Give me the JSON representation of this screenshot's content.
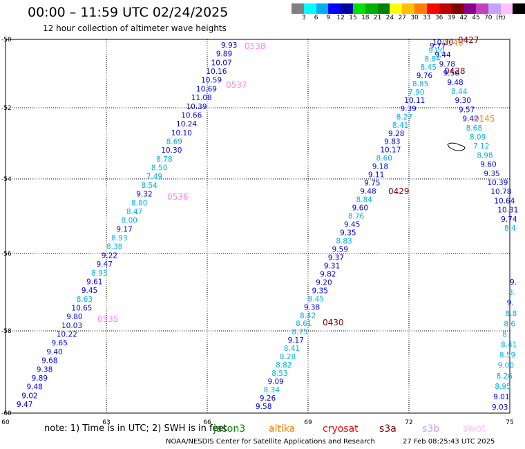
{
  "header": {
    "title": "00:00 – 11:59 UTC 02/24/2025",
    "subtitle": "12 hour collection of altimeter wave heights"
  },
  "colorbar": {
    "colors": [
      "#808080",
      "#00ffff",
      "#00b0f0",
      "#0000ff",
      "#0000a0",
      "#00e000",
      "#00b000",
      "#008000",
      "#ffff00",
      "#ffc000",
      "#ff8000",
      "#ff0000",
      "#c00000",
      "#800000",
      "#8b008b",
      "#c040c0",
      "#c8a0ff",
      "#ffc0ff",
      "#000000"
    ],
    "labels": [
      "3",
      "6",
      "9",
      "12",
      "15",
      "18",
      "21",
      "24",
      "27",
      "30",
      "33",
      "36",
      "39",
      "42",
      "45",
      "70"
    ],
    "unit": "(ft)"
  },
  "map": {
    "lon_ticks": [
      "60",
      "63",
      "66",
      "69",
      "72",
      "75"
    ],
    "lat_ticks": [
      "-50",
      "-52",
      "-54",
      "-56",
      "-58",
      "-60"
    ]
  },
  "passes": [
    {
      "label": "0538",
      "color": "#ff80ff",
      "pos": [
        0,
        0
      ]
    },
    {
      "label": "0537",
      "color": "#ff80ff",
      "pos": [
        0,
        0
      ]
    },
    {
      "label": "0536",
      "color": "#ff80ff",
      "pos": [
        0,
        0
      ]
    },
    {
      "label": "0535",
      "color": "#ff80ff",
      "pos": [
        0,
        0
      ]
    },
    {
      "label": "0427",
      "color": "#800000",
      "pos": [
        0,
        0
      ]
    },
    {
      "label": "0428",
      "color": "#800000",
      "pos": [
        0,
        0
      ]
    },
    {
      "label": "0429",
      "color": "#800000",
      "pos": [
        0,
        0
      ]
    },
    {
      "label": "0430",
      "color": "#800000",
      "pos": [
        0,
        0
      ]
    },
    {
      "label": "0145",
      "color": "#ff8000",
      "pos": [
        0,
        0
      ]
    },
    {
      "label": "0146",
      "color": "#ff8000",
      "pos": [
        0,
        0
      ]
    }
  ],
  "tracks": [
    {
      "name": "track-0535-0538",
      "points": [
        {
          "v": "9.93",
          "c": "#0000ff"
        },
        {
          "v": "9.89",
          "c": "#0000ff"
        },
        {
          "v": "10.07",
          "c": "#0000ff"
        },
        {
          "v": "10.16",
          "c": "#0000ff"
        },
        {
          "v": "10.59",
          "c": "#0000ff"
        },
        {
          "v": "10.69",
          "c": "#0000ff"
        },
        {
          "v": "11.08",
          "c": "#0000ff"
        },
        {
          "v": "10.39",
          "c": "#0000ff"
        },
        {
          "v": "10.66",
          "c": "#0000ff"
        },
        {
          "v": "10.24",
          "c": "#0000ff"
        },
        {
          "v": "10.10",
          "c": "#0000ff"
        },
        {
          "v": "8.69",
          "c": "#00b0f0"
        },
        {
          "v": "10.30",
          "c": "#0000ff"
        },
        {
          "v": "8.78",
          "c": "#00b0f0"
        },
        {
          "v": "8.50",
          "c": "#00b0f0"
        },
        {
          "v": "7.49",
          "c": "#00b0f0"
        },
        {
          "v": "8.54",
          "c": "#00b0f0"
        },
        {
          "v": "9.32",
          "c": "#0000ff"
        },
        {
          "v": "8.80",
          "c": "#00b0f0"
        },
        {
          "v": "8.47",
          "c": "#00b0f0"
        },
        {
          "v": "8.00",
          "c": "#00b0f0"
        },
        {
          "v": "9.17",
          "c": "#0000ff"
        },
        {
          "v": "8.93",
          "c": "#00b0f0"
        },
        {
          "v": "8.38",
          "c": "#00b0f0"
        },
        {
          "v": "9.22",
          "c": "#0000ff"
        },
        {
          "v": "9.47",
          "c": "#0000ff"
        },
        {
          "v": "8.93",
          "c": "#00b0f0"
        },
        {
          "v": "9.61",
          "c": "#0000ff"
        },
        {
          "v": "9.45",
          "c": "#0000ff"
        },
        {
          "v": "8.63",
          "c": "#00b0f0"
        },
        {
          "v": "10.65",
          "c": "#0000ff"
        },
        {
          "v": "9.80",
          "c": "#0000ff"
        },
        {
          "v": "10.03",
          "c": "#0000ff"
        },
        {
          "v": "10.22",
          "c": "#0000ff"
        },
        {
          "v": "9.65",
          "c": "#0000ff"
        },
        {
          "v": "9.40",
          "c": "#0000ff"
        },
        {
          "v": "9.68",
          "c": "#0000ff"
        },
        {
          "v": "9.38",
          "c": "#0000ff"
        },
        {
          "v": "9.89",
          "c": "#0000ff"
        },
        {
          "v": "9.48",
          "c": "#0000ff"
        },
        {
          "v": "9.02",
          "c": "#0000ff"
        },
        {
          "v": "9.47",
          "c": "#0000ff"
        }
      ]
    },
    {
      "name": "track-0427-0430",
      "points": [
        {
          "v": "9.58",
          "c": "#0000ff"
        },
        {
          "v": "9.26",
          "c": "#0000ff"
        },
        {
          "v": "8.34",
          "c": "#00b0f0"
        },
        {
          "v": "9.09",
          "c": "#0000ff"
        },
        {
          "v": "8.53",
          "c": "#00b0f0"
        },
        {
          "v": "8.82",
          "c": "#00b0f0"
        },
        {
          "v": "8.28",
          "c": "#00b0f0"
        },
        {
          "v": "8.41",
          "c": "#00b0f0"
        },
        {
          "v": "9.17",
          "c": "#0000ff"
        },
        {
          "v": "8.75",
          "c": "#00b0f0"
        },
        {
          "v": "8.61",
          "c": "#00b0f0"
        },
        {
          "v": "8.42",
          "c": "#00b0f0"
        },
        {
          "v": "9.38",
          "c": "#0000ff"
        },
        {
          "v": "8.45",
          "c": "#00b0f0"
        },
        {
          "v": "9.35",
          "c": "#0000ff"
        },
        {
          "v": "9.20",
          "c": "#0000ff"
        },
        {
          "v": "9.82",
          "c": "#0000ff"
        },
        {
          "v": "9.31",
          "c": "#0000ff"
        },
        {
          "v": "9.37",
          "c": "#0000ff"
        },
        {
          "v": "9.59",
          "c": "#0000ff"
        },
        {
          "v": "8.83",
          "c": "#00b0f0"
        },
        {
          "v": "9.35",
          "c": "#0000ff"
        },
        {
          "v": "9.45",
          "c": "#0000ff"
        },
        {
          "v": "8.76",
          "c": "#00b0f0"
        },
        {
          "v": "9.60",
          "c": "#0000ff"
        },
        {
          "v": "8.84",
          "c": "#00b0f0"
        },
        {
          "v": "9.48",
          "c": "#0000ff"
        },
        {
          "v": "9.75",
          "c": "#0000ff"
        },
        {
          "v": "9.11",
          "c": "#0000ff"
        },
        {
          "v": "9.18",
          "c": "#0000ff"
        },
        {
          "v": "8.60",
          "c": "#00b0f0"
        },
        {
          "v": "10.17",
          "c": "#0000ff"
        },
        {
          "v": "9.83",
          "c": "#0000ff"
        },
        {
          "v": "9.28",
          "c": "#0000ff"
        },
        {
          "v": "8.41",
          "c": "#00b0f0"
        },
        {
          "v": "8.27",
          "c": "#00b0f0"
        },
        {
          "v": "9.39",
          "c": "#0000ff"
        },
        {
          "v": "10.11",
          "c": "#0000ff"
        },
        {
          "v": "7.90",
          "c": "#00b0f0"
        },
        {
          "v": "8.85",
          "c": "#00b0f0"
        },
        {
          "v": "9.76",
          "c": "#0000ff"
        },
        {
          "v": "8.45",
          "c": "#00b0f0"
        },
        {
          "v": "8.84",
          "c": "#00b0f0"
        },
        {
          "v": "9.00",
          "c": "#00b0f0"
        },
        {
          "v": "10.30",
          "c": "#0000ff"
        }
      ]
    },
    {
      "name": "track-0145-0146",
      "points": [
        {
          "v": "9.77",
          "c": "#0000ff"
        },
        {
          "v": "9.44",
          "c": "#0000ff"
        },
        {
          "v": "9.78",
          "c": "#0000ff"
        },
        {
          "v": "9.50",
          "c": "#0000ff"
        },
        {
          "v": "9.48",
          "c": "#0000ff"
        },
        {
          "v": "8.44",
          "c": "#00b0f0"
        },
        {
          "v": "9.30",
          "c": "#0000ff"
        },
        {
          "v": "9.57",
          "c": "#0000ff"
        },
        {
          "v": "9.42",
          "c": "#0000ff"
        },
        {
          "v": "8.68",
          "c": "#00b0f0"
        },
        {
          "v": "8.09",
          "c": "#00b0f0"
        },
        {
          "v": "7.12",
          "c": "#00b0f0"
        },
        {
          "v": "8.98",
          "c": "#00b0f0"
        },
        {
          "v": "9.60",
          "c": "#0000ff"
        },
        {
          "v": "9.35",
          "c": "#0000ff"
        },
        {
          "v": "10.39",
          "c": "#0000ff"
        },
        {
          "v": "10.78",
          "c": "#0000ff"
        },
        {
          "v": "10.64",
          "c": "#0000ff"
        },
        {
          "v": "10.31",
          "c": "#0000ff"
        },
        {
          "v": "9.74",
          "c": "#0000ff"
        },
        {
          "v": "8.4",
          "c": "#00b0f0"
        }
      ]
    },
    {
      "name": "track-edge-right",
      "points": [
        {
          "v": "9.",
          "c": "#0000ff"
        },
        {
          "v": "8.",
          "c": "#00b0f0"
        },
        {
          "v": "9.",
          "c": "#0000ff"
        },
        {
          "v": "8.8",
          "c": "#00b0f0"
        },
        {
          "v": "8.6",
          "c": "#00b0f0"
        },
        {
          "v": "8.",
          "c": "#00b0f0"
        },
        {
          "v": "8.41",
          "c": "#00b0f0"
        },
        {
          "v": "8.59",
          "c": "#00b0f0"
        },
        {
          "v": "9.00",
          "c": "#00b0f0"
        },
        {
          "v": "8.26",
          "c": "#00b0f0"
        },
        {
          "v": "8.95",
          "c": "#00b0f0"
        },
        {
          "v": "9.01",
          "c": "#0000ff"
        },
        {
          "v": "9.03",
          "c": "#0000ff"
        }
      ]
    }
  ],
  "note": "note: 1) Time is in UTC; 2) SWH is in feet",
  "legend": [
    {
      "label": "jason3",
      "color": "#008000"
    },
    {
      "label": "altika",
      "color": "#ff8000"
    },
    {
      "label": "cryosat",
      "color": "#ff0000"
    },
    {
      "label": "s3a",
      "color": "#800000"
    },
    {
      "label": "s3b",
      "color": "#c8a0ff"
    },
    {
      "label": "swot",
      "color": "#ffc0ff"
    }
  ],
  "footer": {
    "left": "NOAA/NESDIS Center for Satellite Applications and Research",
    "right": "27 Feb 08:25:43 UTC 2025"
  }
}
